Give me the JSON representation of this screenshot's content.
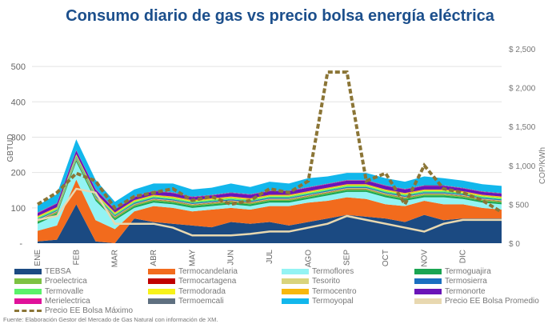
{
  "chart_data": {
    "type": "area",
    "title": "Consumo diario de gas vs precio bolsa energía eléctrica",
    "ylabel": "GBTUD",
    "y2label": "COP/KWh",
    "ylim": [
      0,
      550
    ],
    "y2lim": [
      0,
      2500
    ],
    "yticks": [
      "-",
      "100",
      "200",
      "300",
      "400",
      "500"
    ],
    "yticks_values": [
      0,
      100,
      200,
      300,
      400,
      500
    ],
    "y2ticks": [
      "$ 0",
      "$ 500",
      "$ 1,000",
      "$ 1,500",
      "$ 2,000",
      "$ 2,500"
    ],
    "y2ticks_values": [
      0,
      500,
      1000,
      1500,
      2000,
      2500
    ],
    "xtick_labels": [
      "ENE",
      "FEB",
      "MAR",
      "ABR",
      "MAY",
      "JUN",
      "JUL",
      "AGO",
      "SEP",
      "OCT",
      "NOV",
      "DIC"
    ],
    "grid": true,
    "legend_position": "bottom",
    "x": [
      "ENE 1",
      "ENE 15",
      "FEB 1",
      "FEB 15",
      "MAR 1",
      "MAR 15",
      "ABR 1",
      "ABR 15",
      "MAY 1",
      "MAY 15",
      "JUN 1",
      "JUN 15",
      "JUL 1",
      "JUL 15",
      "AGO 1",
      "AGO 15",
      "SEP 1",
      "SEP 15",
      "OCT 1",
      "OCT 15",
      "NOV 1",
      "NOV 15",
      "DIC 1",
      "DIC 15",
      "DIC 31"
    ],
    "stacked_series": [
      {
        "name": "TEBSA",
        "color": "#1b4a82",
        "values": [
          5,
          10,
          110,
          5,
          0,
          70,
          60,
          55,
          50,
          45,
          60,
          55,
          60,
          50,
          60,
          70,
          80,
          75,
          70,
          60,
          80,
          65,
          70,
          70,
          70
        ]
      },
      {
        "name": "Termocandelaria",
        "color": "#f26b1d",
        "values": [
          30,
          40,
          70,
          60,
          40,
          20,
          45,
          45,
          40,
          50,
          40,
          40,
          45,
          55,
          55,
          50,
          50,
          50,
          40,
          45,
          40,
          45,
          40,
          30,
          25
        ]
      },
      {
        "name": "Termoflores",
        "color": "#93f3f3",
        "values": [
          20,
          30,
          50,
          55,
          25,
          10,
          10,
          10,
          10,
          10,
          10,
          10,
          10,
          10,
          10,
          15,
          15,
          20,
          20,
          15,
          10,
          20,
          15,
          15,
          15
        ]
      },
      {
        "name": "Termoguajira",
        "color": "#1aa552",
        "values": [
          5,
          5,
          5,
          5,
          5,
          5,
          5,
          5,
          5,
          5,
          5,
          5,
          5,
          5,
          5,
          5,
          5,
          5,
          5,
          5,
          5,
          5,
          5,
          5,
          5
        ]
      },
      {
        "name": "Proelectrica",
        "color": "#7dc242",
        "values": [
          3,
          3,
          3,
          3,
          3,
          3,
          3,
          3,
          3,
          3,
          3,
          3,
          3,
          3,
          3,
          3,
          3,
          3,
          3,
          3,
          3,
          3,
          3,
          3,
          3
        ]
      },
      {
        "name": "Termocartagena",
        "color": "#c00000",
        "values": [
          1,
          1,
          1,
          1,
          1,
          1,
          1,
          1,
          1,
          1,
          1,
          1,
          1,
          1,
          1,
          1,
          1,
          1,
          1,
          1,
          1,
          1,
          1,
          1,
          1
        ]
      },
      {
        "name": "Tesorito",
        "color": "#d9d47c",
        "values": [
          2,
          2,
          2,
          2,
          2,
          2,
          2,
          2,
          2,
          2,
          2,
          2,
          2,
          2,
          2,
          2,
          2,
          2,
          2,
          2,
          2,
          2,
          2,
          2,
          2
        ]
      },
      {
        "name": "Termosierra",
        "color": "#1a6fc0",
        "values": [
          3,
          3,
          3,
          3,
          3,
          3,
          3,
          3,
          3,
          3,
          3,
          3,
          3,
          3,
          3,
          3,
          3,
          3,
          3,
          3,
          3,
          3,
          3,
          3,
          3
        ]
      },
      {
        "name": "Termovalle",
        "color": "#5af26a",
        "values": [
          4,
          4,
          4,
          4,
          4,
          4,
          4,
          4,
          4,
          4,
          4,
          4,
          4,
          4,
          4,
          4,
          4,
          4,
          4,
          4,
          4,
          4,
          4,
          4,
          4
        ]
      },
      {
        "name": "Termodorada",
        "color": "#f7f21a",
        "values": [
          1,
          1,
          1,
          1,
          1,
          1,
          1,
          1,
          1,
          1,
          1,
          1,
          1,
          1,
          1,
          1,
          1,
          1,
          1,
          1,
          1,
          1,
          1,
          1,
          1
        ]
      },
      {
        "name": "Termocentro",
        "color": "#f7b80e",
        "values": [
          3,
          3,
          3,
          3,
          3,
          3,
          3,
          3,
          3,
          3,
          3,
          3,
          3,
          3,
          3,
          3,
          3,
          3,
          3,
          3,
          3,
          3,
          3,
          3,
          3
        ]
      },
      {
        "name": "Termonorte",
        "color": "#6a14b8",
        "values": [
          8,
          10,
          10,
          10,
          8,
          8,
          10,
          10,
          8,
          8,
          10,
          10,
          10,
          10,
          10,
          10,
          10,
          10,
          10,
          10,
          10,
          10,
          8,
          8,
          8
        ]
      },
      {
        "name": "Merielectrica",
        "color": "#e0129a",
        "values": [
          1,
          1,
          1,
          1,
          1,
          1,
          1,
          1,
          1,
          1,
          1,
          1,
          1,
          1,
          1,
          1,
          1,
          1,
          1,
          1,
          1,
          1,
          1,
          1,
          1
        ]
      },
      {
        "name": "Termoemcali",
        "color": "#5f7080",
        "values": [
          1,
          1,
          1,
          1,
          1,
          1,
          1,
          1,
          1,
          1,
          1,
          1,
          1,
          1,
          1,
          1,
          1,
          1,
          1,
          1,
          1,
          1,
          1,
          1,
          1
        ]
      },
      {
        "name": "Termoyopal",
        "color": "#12b7ec",
        "values": [
          20,
          25,
          30,
          25,
          20,
          20,
          20,
          25,
          20,
          20,
          25,
          20,
          25,
          20,
          25,
          20,
          20,
          20,
          20,
          20,
          25,
          20,
          20,
          20,
          20
        ]
      }
    ],
    "line_series": [
      {
        "name": "Precio EE Bolsa Promedio",
        "color": "#e8d8b0",
        "dash": false,
        "values": [
          300,
          350,
          700,
          650,
          250,
          250,
          250,
          200,
          100,
          100,
          100,
          120,
          150,
          150,
          200,
          250,
          350,
          300,
          250,
          200,
          150,
          250,
          300,
          300,
          300
        ]
      },
      {
        "name": "Precio EE Bolsa Máximo",
        "color": "#8b7536",
        "dash": true,
        "values": [
          500,
          650,
          900,
          800,
          450,
          600,
          650,
          700,
          550,
          600,
          500,
          550,
          700,
          650,
          800,
          2200,
          2200,
          800,
          900,
          500,
          1000,
          700,
          650,
          550,
          400
        ]
      }
    ]
  },
  "legend": [
    {
      "label": "TEBSA",
      "color": "#1b4a82"
    },
    {
      "label": "Termocandelaria",
      "color": "#f26b1d"
    },
    {
      "label": "Termoflores",
      "color": "#93f3f3"
    },
    {
      "label": "Termoguajira",
      "color": "#1aa552"
    },
    {
      "label": "Proelectrica",
      "color": "#7dc242"
    },
    {
      "label": "Termocartagena",
      "color": "#c00000"
    },
    {
      "label": "Tesorito",
      "color": "#d9d47c"
    },
    {
      "label": "Termosierra",
      "color": "#1a6fc0"
    },
    {
      "label": "Termovalle",
      "color": "#5af26a"
    },
    {
      "label": "Termodorada",
      "color": "#f7f21a"
    },
    {
      "label": "Termocentro",
      "color": "#f7b80e"
    },
    {
      "label": "Termonorte",
      "color": "#6a14b8"
    },
    {
      "label": "Merielectrica",
      "color": "#e0129a"
    },
    {
      "label": "Termoemcali",
      "color": "#5f7080"
    },
    {
      "label": "Termoyopal",
      "color": "#12b7ec"
    },
    {
      "label": "Precio EE Bolsa Promedio",
      "color": "#e8d8b0"
    },
    {
      "label": "Precio EE Bolsa Máximo",
      "color": "#8b7536",
      "dashed": true
    }
  ],
  "source": "Fuente: Elaboración Gestor del Mercado de Gas Natural con información de XM."
}
